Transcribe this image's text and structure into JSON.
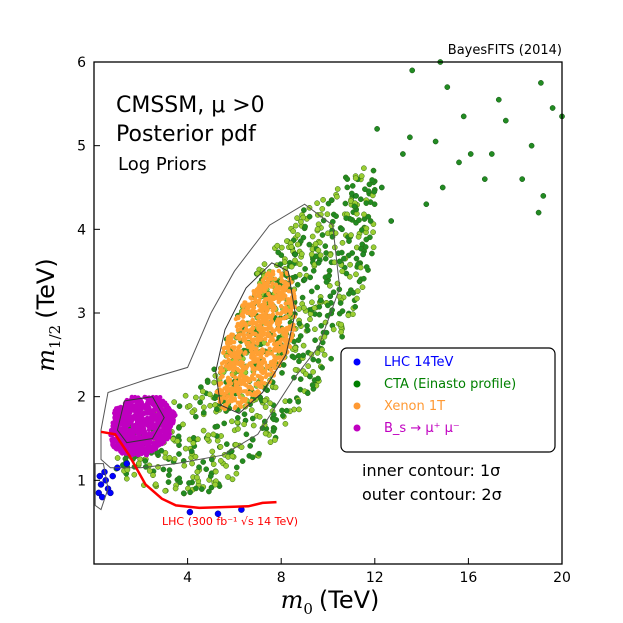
{
  "chart_data": {
    "type": "scatter",
    "credit": "BayesFITS (2014)",
    "xlabel_main": "m",
    "xlabel_sub": "0",
    "xlabel_unit": "(TeV)",
    "ylabel_main": "m",
    "ylabel_sub": "1/2",
    "ylabel_unit": "(TeV)",
    "xlim": [
      0,
      20
    ],
    "ylim": [
      0,
      6
    ],
    "xticks": [
      4,
      8,
      12,
      16,
      20
    ],
    "yticks": [
      1,
      2,
      3,
      4,
      5,
      6
    ],
    "annotations": {
      "title_line1": "CMSSM, μ >0",
      "title_line2": "Posterior pdf",
      "title_line3": "Log Priors",
      "contour_inner": "inner contour: 1σ",
      "contour_outer": "outer contour: 2σ",
      "lhc_label": "LHC (300 fb⁻¹ √s 14 TeV)"
    },
    "legend": {
      "placement": "center-right",
      "entries": [
        {
          "label": "LHC 14TeV",
          "color": "#0000ff"
        },
        {
          "label": "CTA (Einasto profile)",
          "color": "#008000"
        },
        {
          "label": "Xenon 1T",
          "color": "#ff9933"
        },
        {
          "label": "B_s → μ⁺ μ⁻",
          "color": "#c000c0"
        }
      ]
    },
    "colors": {
      "cta": "#228b22",
      "cta_light": "#9acd32",
      "xenon": "#ffa033",
      "bsmumu": "#c000c0",
      "lhc": "#0000ff",
      "lhc_line": "#ff0000",
      "contour": "#555555"
    },
    "series": [
      {
        "name": "CTA (Einasto profile)",
        "points": [
          [
            13.6,
            5.9
          ],
          [
            14.8,
            6.0
          ],
          [
            15.1,
            5.7
          ],
          [
            17.3,
            5.55
          ],
          [
            17.6,
            5.3
          ],
          [
            19.1,
            5.75
          ],
          [
            19.6,
            5.45
          ],
          [
            18.7,
            5.0
          ],
          [
            18.3,
            4.6
          ],
          [
            19.0,
            4.2
          ],
          [
            19.2,
            4.4
          ],
          [
            20.0,
            5.35
          ],
          [
            16.7,
            4.6
          ],
          [
            15.6,
            4.8
          ],
          [
            14.2,
            4.3
          ],
          [
            13.5,
            5.1
          ],
          [
            12.3,
            4.5
          ],
          [
            11.2,
            4.4
          ],
          [
            10.6,
            4.0
          ],
          [
            9.6,
            3.6
          ],
          [
            9.0,
            3.4
          ],
          [
            8.6,
            3.7
          ],
          [
            10.1,
            3.2
          ],
          [
            11.5,
            3.7
          ],
          [
            12.7,
            4.1
          ],
          [
            13.2,
            4.9
          ],
          [
            12.1,
            5.2
          ],
          [
            14.6,
            5.05
          ],
          [
            15.8,
            5.35
          ],
          [
            16.1,
            4.9
          ],
          [
            17.0,
            4.9
          ],
          [
            14.9,
            4.5
          ]
        ]
      },
      {
        "name": "LHC 14TeV",
        "points": [
          [
            0.2,
            0.85
          ],
          [
            0.3,
            0.95
          ],
          [
            0.35,
            0.8
          ],
          [
            0.5,
            1.0
          ],
          [
            0.6,
            0.9
          ],
          [
            0.45,
            1.1
          ],
          [
            0.8,
            1.05
          ],
          [
            1.0,
            1.15
          ],
          [
            0.25,
            1.05
          ],
          [
            0.7,
            0.85
          ],
          [
            1.4,
            1.2
          ],
          [
            4.1,
            0.62
          ],
          [
            5.3,
            0.6
          ],
          [
            6.3,
            0.65
          ]
        ]
      }
    ],
    "lhc_curve": [
      [
        0.3,
        1.58
      ],
      [
        0.9,
        1.55
      ],
      [
        1.5,
        1.3
      ],
      [
        2.2,
        0.95
      ],
      [
        2.9,
        0.78
      ],
      [
        3.5,
        0.7
      ],
      [
        4.5,
        0.67
      ],
      [
        5.5,
        0.68
      ],
      [
        6.6,
        0.69
      ],
      [
        7.2,
        0.73
      ],
      [
        7.8,
        0.74
      ]
    ],
    "region_blobs": {
      "cta_core": [
        [
          0.5,
          1.4
        ],
        [
          2.5,
          1.9
        ],
        [
          4.5,
          2.1
        ],
        [
          5.5,
          2.6
        ],
        [
          7.0,
          3.5
        ],
        [
          8.8,
          4.2
        ],
        [
          10.5,
          4.6
        ],
        [
          12.0,
          4.8
        ],
        [
          12.0,
          3.7
        ],
        [
          11.0,
          2.9
        ],
        [
          9.5,
          2.1
        ],
        [
          7.5,
          1.4
        ],
        [
          5.5,
          0.9
        ],
        [
          3.8,
          0.8
        ],
        [
          2.0,
          0.95
        ],
        [
          0.6,
          1.1
        ]
      ],
      "xenon": [
        [
          5.2,
          2.0
        ],
        [
          5.5,
          2.55
        ],
        [
          6.3,
          3.1
        ],
        [
          7.2,
          3.45
        ],
        [
          8.2,
          3.55
        ],
        [
          8.7,
          3.2
        ],
        [
          8.6,
          2.7
        ],
        [
          7.6,
          2.2
        ],
        [
          6.4,
          1.85
        ],
        [
          5.5,
          1.85
        ]
      ],
      "bsmumu": [
        [
          0.7,
          1.55
        ],
        [
          0.9,
          1.85
        ],
        [
          1.6,
          2.0
        ],
        [
          2.8,
          2.0
        ],
        [
          3.5,
          1.8
        ],
        [
          3.2,
          1.5
        ],
        [
          2.3,
          1.3
        ],
        [
          1.3,
          1.3
        ],
        [
          0.8,
          1.4
        ]
      ]
    },
    "contours": {
      "inner_main": [
        [
          5.2,
          2.3
        ],
        [
          5.6,
          2.8
        ],
        [
          6.5,
          3.3
        ],
        [
          7.6,
          3.6
        ],
        [
          8.3,
          3.5
        ],
        [
          8.6,
          3.0
        ],
        [
          8.2,
          2.5
        ],
        [
          7.2,
          2.05
        ],
        [
          6.2,
          1.8
        ],
        [
          5.4,
          1.9
        ]
      ],
      "outer_main": [
        [
          0.3,
          1.6
        ],
        [
          0.6,
          2.05
        ],
        [
          2.2,
          2.2
        ],
        [
          4.0,
          2.35
        ],
        [
          5.0,
          3.0
        ],
        [
          6.0,
          3.5
        ],
        [
          7.5,
          4.05
        ],
        [
          9.0,
          4.3
        ],
        [
          10.2,
          4.05
        ],
        [
          10.5,
          3.3
        ],
        [
          9.6,
          2.6
        ],
        [
          8.5,
          2.2
        ],
        [
          7.0,
          1.55
        ],
        [
          5.5,
          1.3
        ],
        [
          3.5,
          1.2
        ],
        [
          2.0,
          1.15
        ],
        [
          0.7,
          1.15
        ],
        [
          0.3,
          1.25
        ]
      ],
      "inner_small": [
        [
          1.0,
          1.6
        ],
        [
          1.3,
          1.95
        ],
        [
          2.5,
          2.0
        ],
        [
          3.0,
          1.75
        ],
        [
          2.5,
          1.5
        ],
        [
          1.4,
          1.45
        ]
      ],
      "outer_small": [
        [
          0.05,
          0.7
        ],
        [
          0.05,
          1.2
        ],
        [
          0.4,
          1.2
        ],
        [
          0.6,
          0.9
        ],
        [
          0.3,
          0.65
        ]
      ]
    }
  }
}
